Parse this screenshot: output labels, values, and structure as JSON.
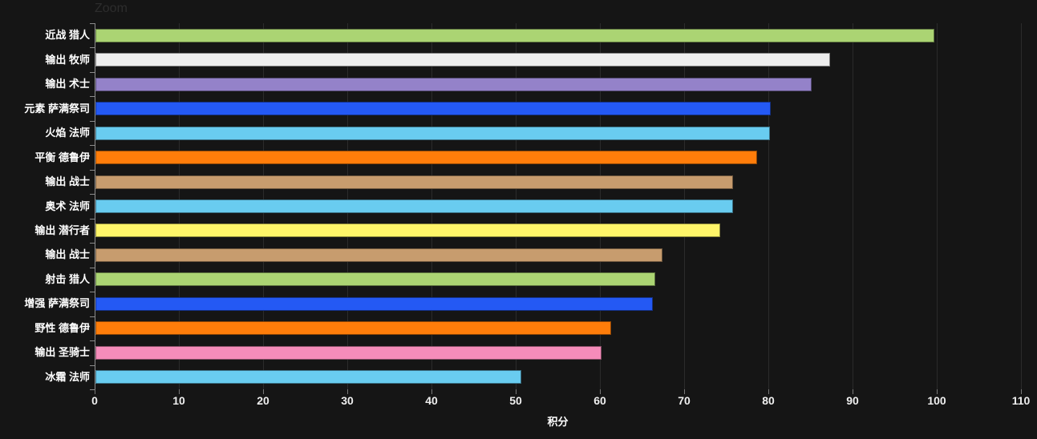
{
  "page": {
    "background": "#151515"
  },
  "toolbar": {
    "zoom_label": "Zoom"
  },
  "chart_data": {
    "type": "bar",
    "orientation": "horizontal",
    "title": "",
    "xlabel": "积分",
    "ylabel": "",
    "xlim": [
      0,
      110
    ],
    "xticks": [
      0,
      10,
      20,
      30,
      40,
      50,
      60,
      70,
      80,
      90,
      100,
      110
    ],
    "grid": "vertical",
    "legend": "none",
    "categories": [
      "近战 猎人",
      "输出 牧师",
      "输出 术士",
      "元素 萨满祭司",
      "火焰 法师",
      "平衡 德鲁伊",
      "输出 战士",
      "奥术 法师",
      "输出 潜行者",
      "输出 战士",
      "射击 猎人",
      "增强 萨满祭司",
      "野性 德鲁伊",
      "输出 圣骑士",
      "冰霜 法师"
    ],
    "values": [
      99.6,
      87.2,
      85.0,
      80.2,
      80.1,
      78.6,
      75.7,
      75.7,
      74.2,
      67.3,
      66.5,
      66.2,
      61.2,
      60.1,
      50.6
    ],
    "colors": [
      "#ABD473",
      "#EDEDED",
      "#9482C9",
      "#2459F4",
      "#69CCF0",
      "#FF7D0A",
      "#C79C6E",
      "#69CCF0",
      "#FFF569",
      "#C79C6E",
      "#ABD473",
      "#2459F4",
      "#FF7D0A",
      "#F58CBA",
      "#69CCF0"
    ],
    "style": {
      "background": "#151515",
      "gridline_color": "#2b2b2b",
      "axis_color": "#8c8c8c",
      "tick_color": "#777777",
      "category_label_color": "#ffffff",
      "tick_label_color": "#efefef",
      "axis_title_color": "#ffffff"
    }
  }
}
